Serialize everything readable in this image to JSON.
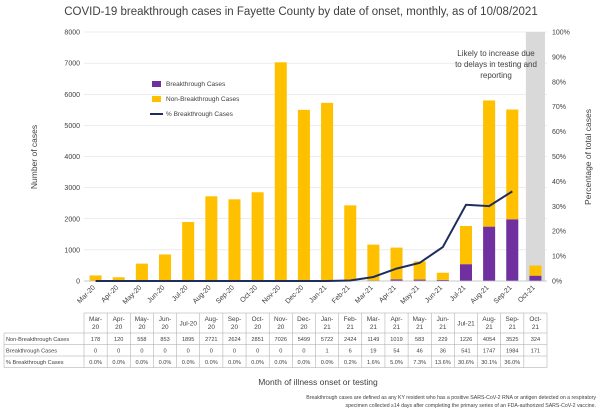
{
  "chart_data": {
    "type": "bar",
    "title": "COVID-19 breakthrough cases in Fayette County by date of onset, monthly, as of 10/08/2021",
    "xlabel": "Month of illness onset or testing",
    "ylabel": "Number of cases",
    "y2label": "Percentage of total cases",
    "ylim": [
      0,
      8000
    ],
    "y2lim": [
      0,
      100
    ],
    "yticks": [
      "0",
      "1000",
      "2000",
      "3000",
      "4000",
      "5000",
      "6000",
      "7000",
      "8000"
    ],
    "y2ticks": [
      "0%",
      "10%",
      "20%",
      "30%",
      "40%",
      "50%",
      "60%",
      "70%",
      "80%",
      "90%",
      "100%"
    ],
    "stacked": true,
    "legend_position": "top-left",
    "categories": [
      "Mar-20",
      "Apr-20",
      "May-20",
      "Jun-20",
      "Jul-20",
      "Aug-20",
      "Sep-20",
      "Oct-20",
      "Nov-20",
      "Dec-20",
      "Jan-21",
      "Feb-21",
      "Mar-21",
      "Apr-21",
      "May-21",
      "Jun-21",
      "Jul-21",
      "Aug-21",
      "Sep-21",
      "Oct-21"
    ],
    "table_categories": [
      [
        "Mar-",
        "20"
      ],
      [
        "Apr-",
        "20"
      ],
      [
        "May-",
        "20"
      ],
      [
        "Jun-",
        "20"
      ],
      [
        "Jul-20",
        ""
      ],
      [
        "Aug-",
        "20"
      ],
      [
        "Sep-",
        "20"
      ],
      [
        "Oct-",
        "20"
      ],
      [
        "Nov-",
        "20"
      ],
      [
        "Dec-",
        "20"
      ],
      [
        "Jan-",
        "21"
      ],
      [
        "Feb-",
        "21"
      ],
      [
        "Mar-",
        "21"
      ],
      [
        "Apr-",
        "21"
      ],
      [
        "May-",
        "21"
      ],
      [
        "Jun-",
        "21"
      ],
      [
        "Jul-21",
        ""
      ],
      [
        "Aug-",
        "21"
      ],
      [
        "Sep-",
        "21"
      ],
      [
        "Oct-",
        "21"
      ]
    ],
    "series": [
      {
        "name": "Breakthrough Cases",
        "color": "#7030a0",
        "values": [
          0,
          0,
          0,
          0,
          0,
          0,
          0,
          0,
          0,
          0,
          1,
          6,
          19,
          54,
          46,
          36,
          541,
          1747,
          1984,
          171
        ]
      },
      {
        "name": "Non-Breakthrough Cases",
        "color": "#ffc000",
        "values": [
          178,
          120,
          558,
          853,
          1895,
          2721,
          2624,
          2851,
          7026,
          5499,
          5722,
          2424,
          1149,
          1019,
          583,
          229,
          1226,
          4054,
          3525,
          324
        ]
      },
      {
        "name": "% Breakthrough Cases",
        "color": "#1f2d5c",
        "axis": "right",
        "values": [
          0.0,
          0.0,
          0.0,
          0.0,
          0.0,
          0.0,
          0.0,
          0.0,
          0.0,
          0.0,
          0.0,
          0.2,
          1.6,
          5.0,
          7.3,
          13.6,
          30.6,
          30.1,
          36.0,
          null
        ]
      }
    ],
    "table_rows": [
      {
        "label": "Non-Breakthrough Cases",
        "cells": [
          "178",
          "120",
          "558",
          "853",
          "1895",
          "2721",
          "2624",
          "2851",
          "7026",
          "5499",
          "5722",
          "2424",
          "1149",
          "1019",
          "583",
          "229",
          "1226",
          "4054",
          "3525",
          "324"
        ]
      },
      {
        "label": "Breakthrough Cases",
        "cells": [
          "0",
          "0",
          "0",
          "0",
          "0",
          "0",
          "0",
          "0",
          "0",
          "0",
          "1",
          "6",
          "19",
          "54",
          "46",
          "36",
          "541",
          "1747",
          "1984",
          "171"
        ]
      },
      {
        "label": "% Breakthrough Cases",
        "cells": [
          "0.0%",
          "0.0%",
          "0.0%",
          "0.0%",
          "0.0%",
          "0.0%",
          "0.0%",
          "0.0%",
          "0.0%",
          "0.0%",
          "0.0%",
          "0.2%",
          "1.6%",
          "5.0%",
          "7.3%",
          "13.6%",
          "30.6%",
          "30.1%",
          "36.0%",
          ""
        ]
      }
    ],
    "shaded_category": "Oct-21",
    "annotation": [
      "Likely to increase due",
      "to delays in testing and",
      "reporting"
    ],
    "footnote": [
      "Breakthrough cases are defined as any KY resident who has a positive SARS-CoV-2 RNA or antigen detected on a respiratory",
      "specimen collected ≥14 days after completing the primary series of an FDA-authorized SARS-CoV-2 vaccine."
    ],
    "colors": {
      "shade": "#d9d9d9",
      "grid": "#d9d9d9"
    }
  }
}
